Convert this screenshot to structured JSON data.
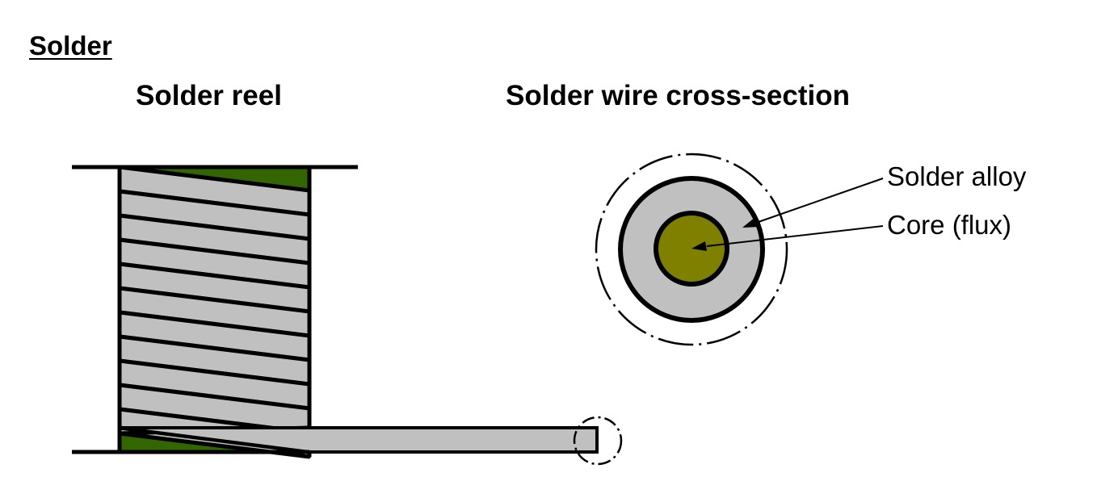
{
  "title": "Solder",
  "reel": {
    "heading": "Solder reel"
  },
  "cross_section": {
    "heading": "Solder wire cross-section",
    "labels": {
      "alloy": "Solder alloy",
      "core": "Core (flux)"
    }
  },
  "colors": {
    "reel_core": "#336600",
    "solder_alloy": "#c0c0c0",
    "flux_core": "#808000",
    "outline": "#000000",
    "background": "#ffffff"
  }
}
